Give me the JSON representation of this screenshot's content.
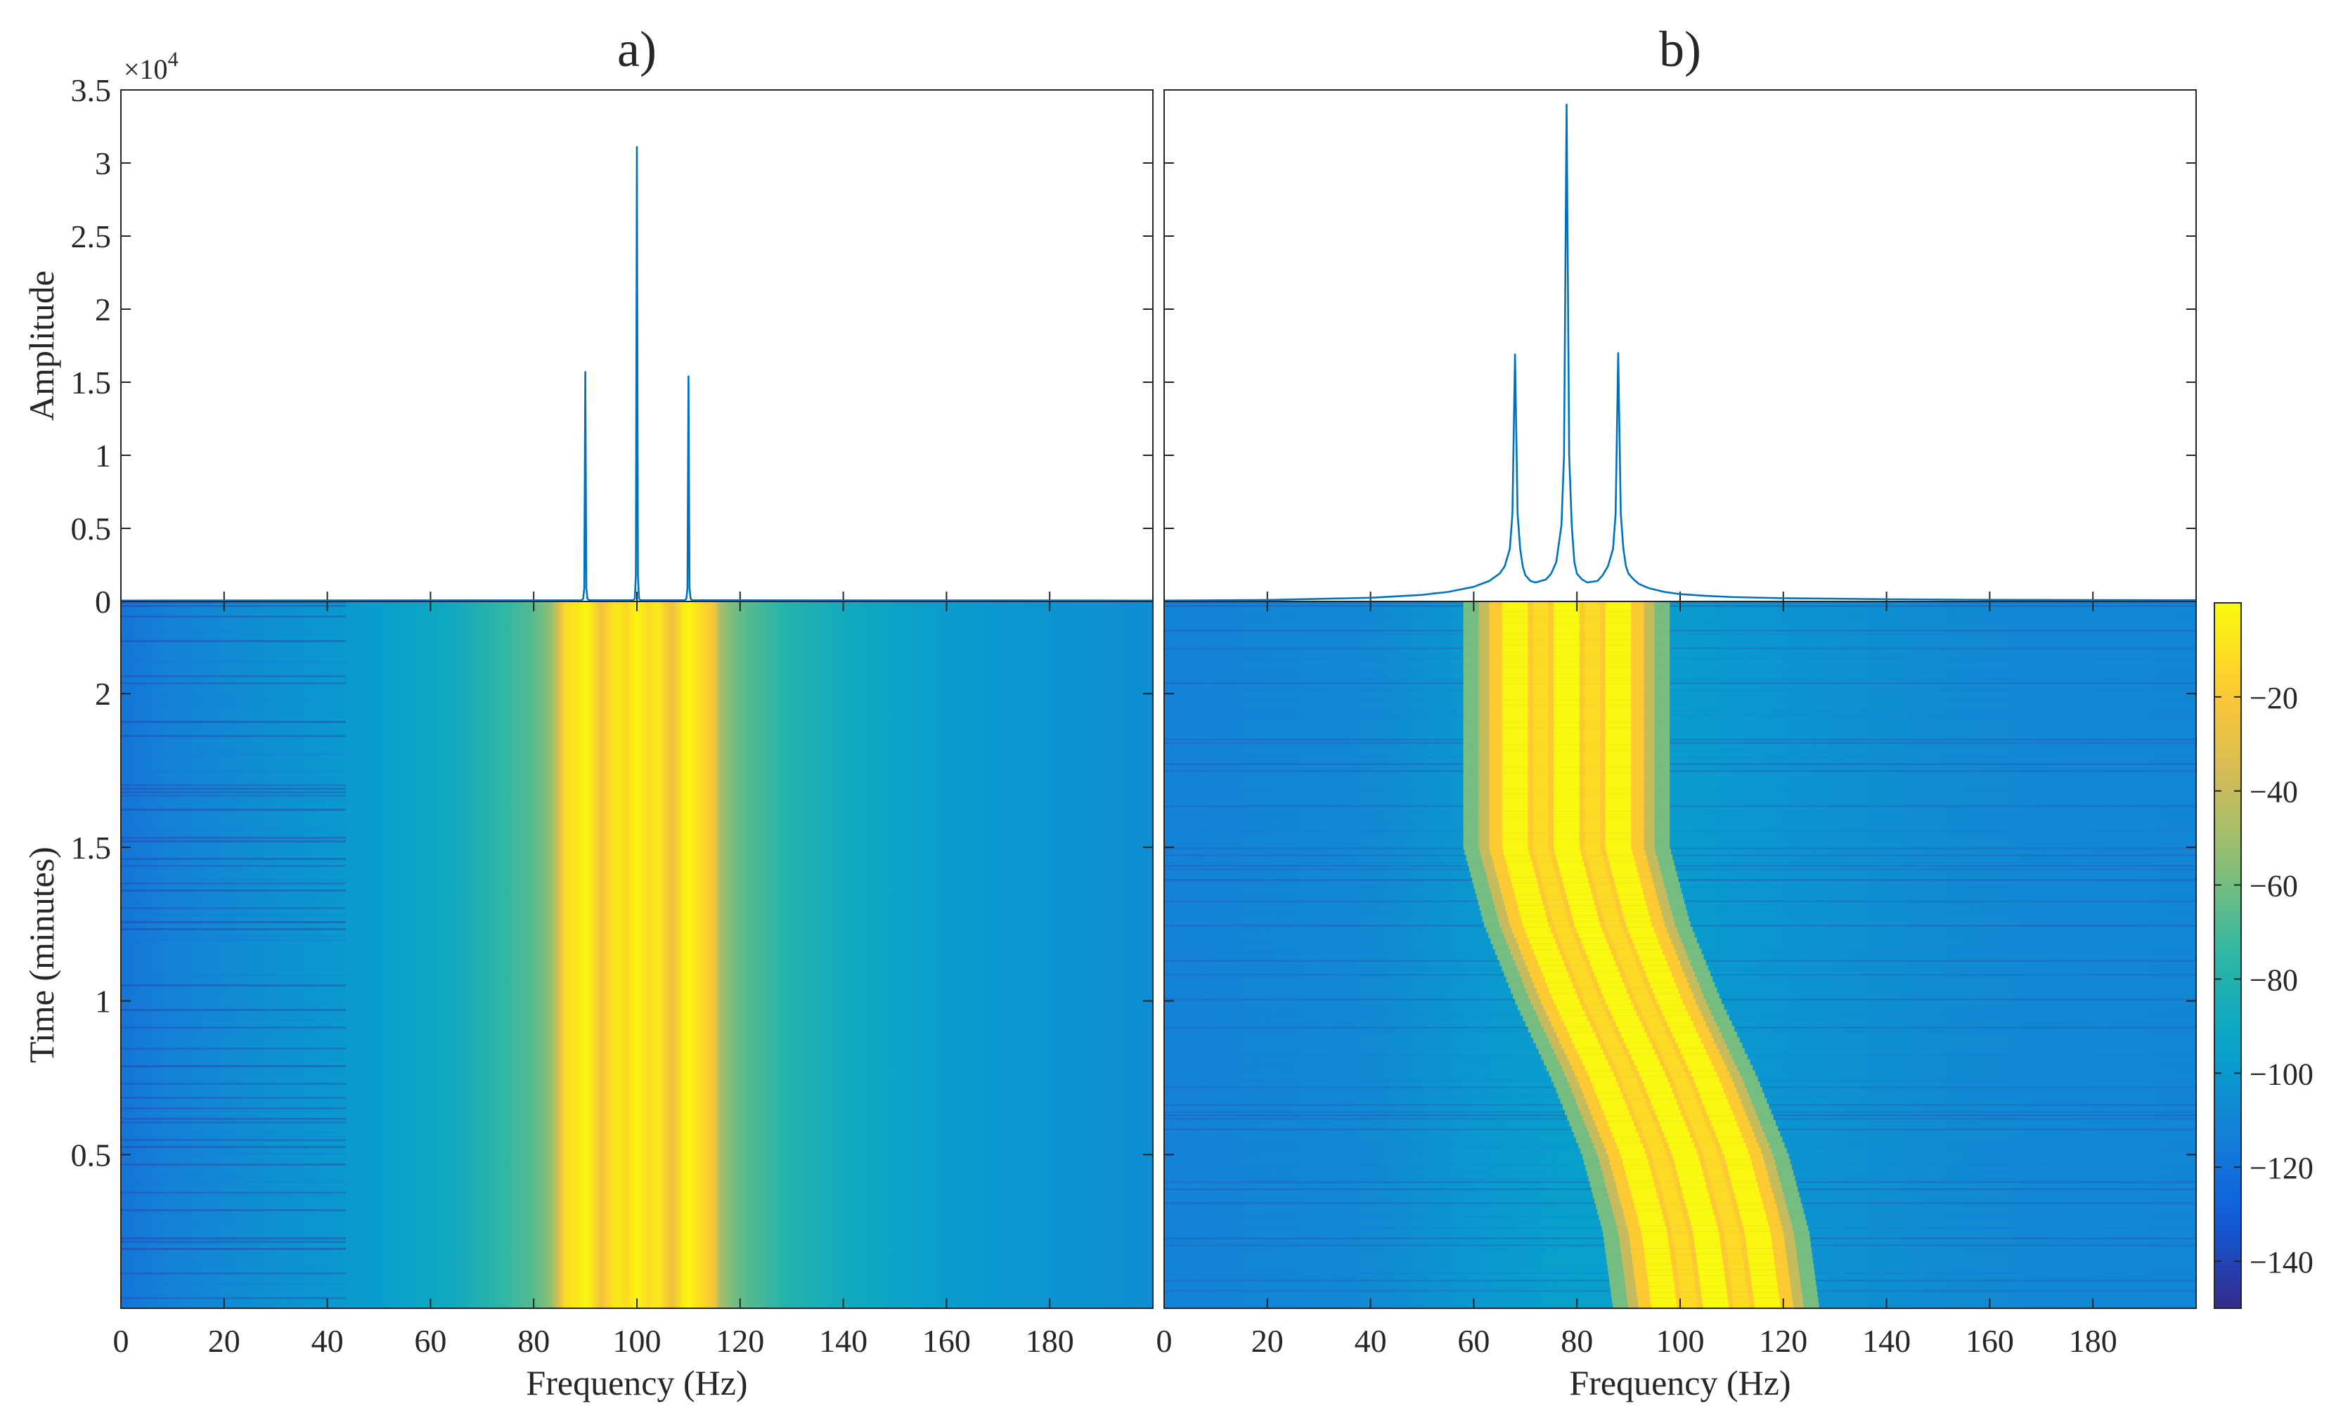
{
  "chart_data": [
    {
      "id": "a_spectrum",
      "type": "line",
      "title": "a)",
      "xlabel": "",
      "ylabel": "Amplitude",
      "xlim": [
        0,
        200
      ],
      "ylim": [
        0,
        35000
      ],
      "xticks": [
        0,
        20,
        40,
        60,
        80,
        100,
        120,
        140,
        160,
        180
      ],
      "yticks": [
        0,
        5000,
        10000,
        15000,
        20000,
        25000,
        30000,
        35000
      ],
      "ytick_labels": [
        "0",
        "0.5",
        "1",
        "1.5",
        "2",
        "2.5",
        "3",
        "3.5"
      ],
      "y_exponent_label": "×10",
      "y_exponent_power": "4",
      "line_color": "#0072BD",
      "series": [
        {
          "x": [
            0,
            89.3,
            89.6,
            89.8,
            90.0,
            90.2,
            90.4,
            90.7,
            99.3,
            99.6,
            99.8,
            100.0,
            100.2,
            100.4,
            100.7,
            109.3,
            109.6,
            109.8,
            110.0,
            110.2,
            110.4,
            110.7,
            200
          ],
          "y": [
            60,
            80,
            200,
            900,
            15700,
            900,
            200,
            80,
            80,
            200,
            1800,
            31100,
            1800,
            200,
            80,
            80,
            200,
            900,
            15400,
            900,
            200,
            80,
            60
          ]
        }
      ]
    },
    {
      "id": "b_spectrum",
      "type": "line",
      "title": "b)",
      "xlabel": "",
      "ylabel": "",
      "xlim": [
        0,
        200
      ],
      "ylim": [
        0,
        35000
      ],
      "xticks": [
        0,
        20,
        40,
        60,
        80,
        100,
        120,
        140,
        160,
        180
      ],
      "yticks": [
        0,
        5000,
        10000,
        15000,
        20000,
        25000,
        30000,
        35000
      ],
      "line_color": "#0072BD",
      "series": [
        {
          "x": [
            0,
            20,
            40,
            50,
            55,
            60,
            63,
            65,
            66,
            67,
            67.5,
            68,
            68.5,
            69,
            69.5,
            70,
            71,
            72,
            74,
            75,
            76,
            77,
            77.5,
            78,
            78.5,
            79,
            79.5,
            80,
            81,
            82,
            84,
            85,
            86,
            87,
            87.5,
            88,
            88.5,
            89,
            89.5,
            90,
            91,
            92,
            94,
            97,
            100,
            105,
            110,
            120,
            140,
            160,
            200
          ],
          "y": [
            60,
            100,
            250,
            450,
            650,
            1000,
            1400,
            1900,
            2400,
            3600,
            6000,
            16900,
            6000,
            3600,
            2400,
            1800,
            1400,
            1300,
            1500,
            1900,
            2700,
            5200,
            10000,
            34000,
            10000,
            5200,
            2700,
            1900,
            1500,
            1300,
            1400,
            1800,
            2400,
            3600,
            6000,
            17000,
            6000,
            3600,
            2400,
            1900,
            1500,
            1200,
            900,
            650,
            500,
            380,
            300,
            220,
            150,
            110,
            80
          ]
        }
      ]
    },
    {
      "id": "a_spectrogram",
      "type": "heatmap",
      "xlabel": "Frequency (Hz)",
      "ylabel": "Time (minutes)",
      "xlim": [
        0,
        200
      ],
      "ylim": [
        0,
        2.3
      ],
      "xticks": [
        0,
        20,
        40,
        60,
        80,
        100,
        120,
        140,
        160,
        180
      ],
      "yticks": [
        0.5,
        1,
        1.5,
        2
      ],
      "component_frequencies_hz": [
        90,
        100,
        110
      ],
      "component_band_hz": [
        85,
        116
      ],
      "value_range_db": [
        -150,
        0
      ]
    },
    {
      "id": "b_spectrogram",
      "type": "heatmap",
      "xlabel": "Frequency (Hz)",
      "ylabel": "",
      "xlim": [
        0,
        200
      ],
      "ylim": [
        0,
        2.3
      ],
      "xticks": [
        0,
        20,
        40,
        60,
        80,
        100,
        120,
        140,
        160,
        180
      ],
      "yticks": [
        0.5,
        1,
        1.5,
        2
      ],
      "center_frequency_track": {
        "time_min": [
          0,
          0.25,
          0.5,
          0.75,
          1.0,
          1.25,
          1.5,
          1.75,
          2.0,
          2.3
        ],
        "freq_hz": [
          107,
          105,
          101,
          95,
          88,
          82,
          78,
          78,
          78,
          78
        ]
      },
      "sideband_offset_hz": 10,
      "value_range_db": [
        -150,
        0
      ]
    },
    {
      "id": "colorbar",
      "type": "colorbar",
      "clim": [
        -150,
        0
      ],
      "ticks": [
        -140,
        -120,
        -100,
        -80,
        -60,
        -40,
        -20
      ],
      "colormap": "parula",
      "colormap_stops": [
        "#352A87",
        "#0F5CDD",
        "#1481D6",
        "#06A4CA",
        "#2EB7A4",
        "#87BF77",
        "#D1BB59",
        "#FEC832",
        "#F9FB0E"
      ]
    }
  ]
}
